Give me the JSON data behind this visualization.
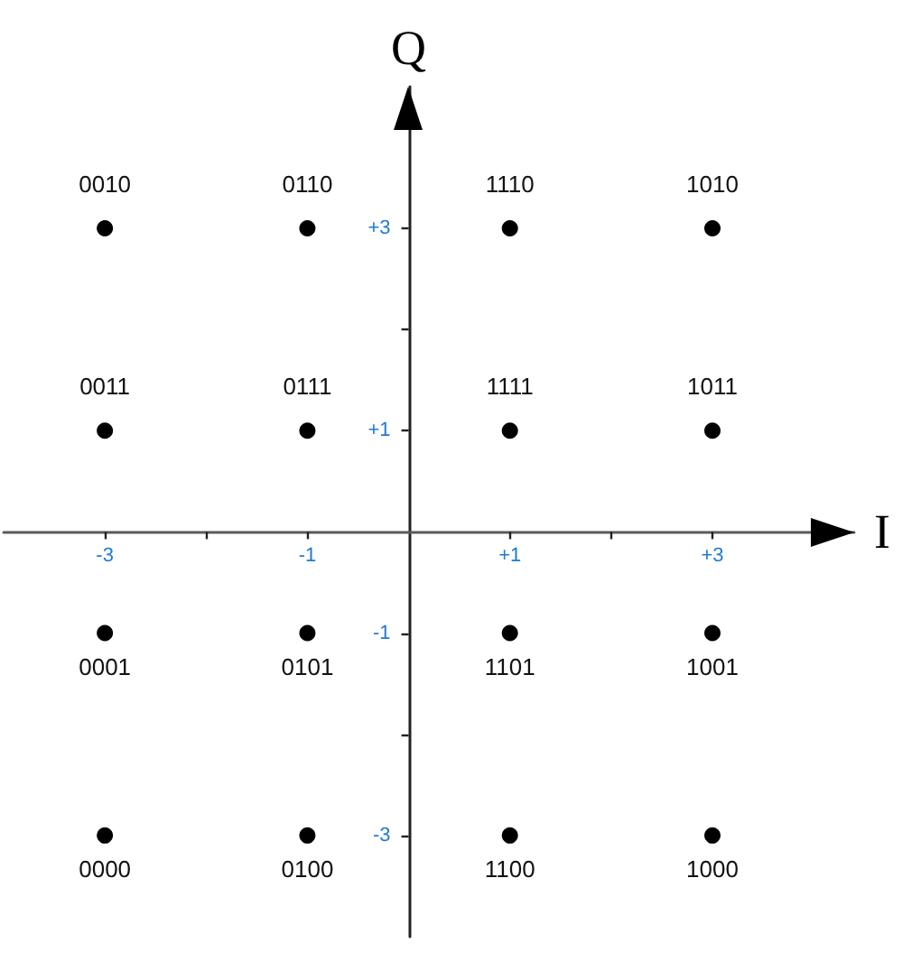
{
  "chart_data": {
    "type": "scatter",
    "xlabel": "I",
    "ylabel": "Q",
    "x": [
      -3,
      -1,
      1,
      3,
      -3,
      -1,
      1,
      3,
      -3,
      -1,
      1,
      3,
      -3,
      -1,
      1,
      3
    ],
    "values": [
      3,
      3,
      3,
      3,
      1,
      1,
      1,
      1,
      -1,
      -1,
      -1,
      -1,
      -3,
      -3,
      -3,
      -3
    ],
    "color": "#000000",
    "marker": "circle",
    "xlim": [
      -4,
      4.4
    ],
    "ylim": [
      -4,
      4.4
    ],
    "xticks": [
      -3,
      {
        "value": -2,
        "label": null
      },
      -1,
      {
        "value": 1,
        "label": "+1"
      },
      {
        "value": 2,
        "label": null
      },
      {
        "value": 3,
        "label": "+3"
      }
    ],
    "yticks": [
      -3,
      {
        "value": -2,
        "label": null
      },
      -1,
      {
        "value": 1,
        "label": "+1"
      },
      {
        "value": 2,
        "label": null
      },
      {
        "value": 3,
        "label": "+3"
      }
    ],
    "annotations": [
      {
        "text": "0010",
        "x": -3,
        "y": 3
      },
      {
        "text": "0110",
        "x": -1,
        "y": 3
      },
      {
        "text": "1110",
        "x": 1,
        "y": 3
      },
      {
        "text": "1010",
        "x": 3,
        "y": 3
      },
      {
        "text": "0011",
        "x": -3,
        "y": 1
      },
      {
        "text": "0111",
        "x": -1,
        "y": 1
      },
      {
        "text": "1111",
        "x": 1,
        "y": 1
      },
      {
        "text": "1011",
        "x": 3,
        "y": 1
      },
      {
        "text": "0001",
        "x": -3,
        "y": -1
      },
      {
        "text": "0101",
        "x": -1,
        "y": -1
      },
      {
        "text": "1101",
        "x": 1,
        "y": -1
      },
      {
        "text": "1001",
        "x": 3,
        "y": -1
      },
      {
        "text": "0000",
        "x": -3,
        "y": -3
      },
      {
        "text": "0100",
        "x": -1,
        "y": -3
      },
      {
        "text": "1100",
        "x": 1,
        "y": -3
      },
      {
        "text": "1000",
        "x": 3,
        "y": -3
      }
    ]
  }
}
